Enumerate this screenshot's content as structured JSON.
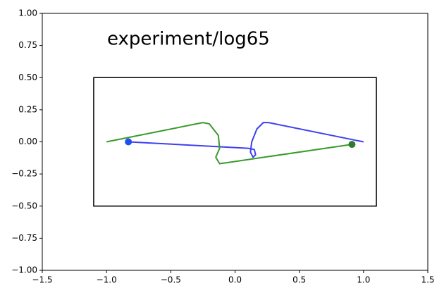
{
  "chart_data": {
    "type": "line",
    "annotation": "experiment/log65",
    "xlim": [
      -1.5,
      1.5
    ],
    "ylim": [
      -1.0,
      1.0
    ],
    "xticks": [
      {
        "value": -1.5,
        "label": "−1.5"
      },
      {
        "value": -1.0,
        "label": "−1.0"
      },
      {
        "value": -0.5,
        "label": "−0.5"
      },
      {
        "value": 0.0,
        "label": "0.0"
      },
      {
        "value": 0.5,
        "label": "0.5"
      },
      {
        "value": 1.0,
        "label": "1.0"
      },
      {
        "value": 1.5,
        "label": "1.5"
      }
    ],
    "yticks": [
      {
        "value": -1.0,
        "label": "−1.00"
      },
      {
        "value": -0.75,
        "label": "−0.75"
      },
      {
        "value": -0.5,
        "label": "−0.50"
      },
      {
        "value": -0.25,
        "label": "−0.25"
      },
      {
        "value": 0.0,
        "label": "0.00"
      },
      {
        "value": 0.25,
        "label": "0.25"
      },
      {
        "value": 0.5,
        "label": "0.50"
      },
      {
        "value": 0.75,
        "label": "0.75"
      },
      {
        "value": 1.0,
        "label": "1.00"
      }
    ],
    "grid": false,
    "rectangle": {
      "x": [
        -1.1,
        1.1
      ],
      "y": [
        -0.5,
        0.5
      ],
      "color": "#000000"
    },
    "series": [
      {
        "color": "#3f3ff0",
        "x": [
          -0.83,
          0.1,
          0.15,
          0.16,
          0.14,
          0.12,
          0.13,
          0.17,
          0.22,
          0.26,
          0.95,
          1.0
        ],
        "y": [
          0.0,
          -0.05,
          -0.06,
          -0.1,
          -0.12,
          -0.08,
          0.0,
          0.1,
          0.15,
          0.15,
          0.01,
          0.0
        ],
        "marker": {
          "x": -0.83,
          "y": 0.0,
          "color": "#1f4ff0"
        }
      },
      {
        "color": "#3a9a2a",
        "x": [
          -1.0,
          -0.9,
          -0.25,
          -0.2,
          -0.13,
          -0.12,
          -0.15,
          -0.12,
          -0.05,
          0.91
        ],
        "y": [
          0.0,
          0.02,
          0.15,
          0.14,
          0.05,
          -0.05,
          -0.12,
          -0.17,
          -0.16,
          -0.02
        ],
        "marker": {
          "x": 0.91,
          "y": -0.02,
          "color": "#2e7d2e"
        }
      }
    ]
  }
}
